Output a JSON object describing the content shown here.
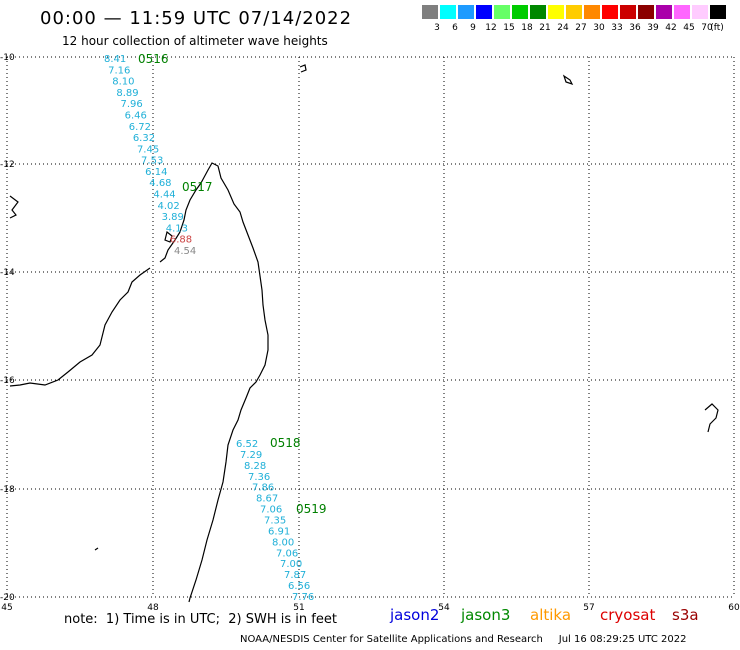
{
  "header": {
    "title": "00:00 — 11:59 UTC 07/14/2022",
    "subtitle": "12 hour collection of altimeter wave heights"
  },
  "legend": {
    "unit": "(ft)",
    "bins": [
      {
        "label": "3",
        "color": "#7f7f7f"
      },
      {
        "label": "6",
        "color": "#00ffff"
      },
      {
        "label": "9",
        "color": "#1e9bff"
      },
      {
        "label": "12",
        "color": "#0000ff"
      },
      {
        "label": "15",
        "color": "#66ff66"
      },
      {
        "label": "18",
        "color": "#00cc00"
      },
      {
        "label": "21",
        "color": "#008800"
      },
      {
        "label": "24",
        "color": "#ffff00"
      },
      {
        "label": "27",
        "color": "#ffcc00"
      },
      {
        "label": "30",
        "color": "#ff8800"
      },
      {
        "label": "33",
        "color": "#ff0000"
      },
      {
        "label": "36",
        "color": "#cc0000"
      },
      {
        "label": "39",
        "color": "#8b0000"
      },
      {
        "label": "42",
        "color": "#aa00aa"
      },
      {
        "label": "45",
        "color": "#ff66ff"
      },
      {
        "label": "70",
        "color": "#ffccff"
      },
      {
        "label": "",
        "color": "#000000"
      }
    ]
  },
  "axes": {
    "lat_labels": [
      "-10",
      "-12",
      "-14",
      "-16",
      "-18",
      "-20"
    ],
    "lon_labels": [
      "45",
      "48",
      "51",
      "54",
      "57",
      "60"
    ]
  },
  "passes": [
    {
      "time": "0516",
      "color": "#008000"
    },
    {
      "time": "0517",
      "color": "#008000"
    },
    {
      "time": "0518",
      "color": "#008000"
    },
    {
      "time": "0519",
      "color": "#008000"
    }
  ],
  "wave_heights": {
    "track_a": [
      "8.41",
      "7.16",
      "8.10",
      "8.89",
      "7.96",
      "6.46",
      "6.72",
      "6.32",
      "7.45",
      "7.53",
      "6.14",
      "4.68",
      "4.44",
      "4.02",
      "3.89",
      "4.13",
      "6.88",
      "4.54"
    ],
    "track_b": [
      "6.52",
      "7.29",
      "8.28",
      "7.36",
      "7.86",
      "8.67",
      "7.06",
      "7.35",
      "6.91",
      "8.00",
      "7.06",
      "7.00",
      "7.87",
      "6.56",
      "7.76"
    ]
  },
  "footer": {
    "note": "note:  1) Time is in UTC;  2) SWH is in feet",
    "missions": [
      {
        "name": "jason2",
        "color": "#0000dd"
      },
      {
        "name": "jason3",
        "color": "#008800"
      },
      {
        "name": "altika",
        "color": "#ff9900"
      },
      {
        "name": "cryosat",
        "color": "#dd0000"
      },
      {
        "name": "s3a",
        "color": "#990000"
      }
    ],
    "credit": "NOAA/NESDIS Center for Satellite Applications and Research     Jul 16 08:29:25 UTC 2022"
  }
}
